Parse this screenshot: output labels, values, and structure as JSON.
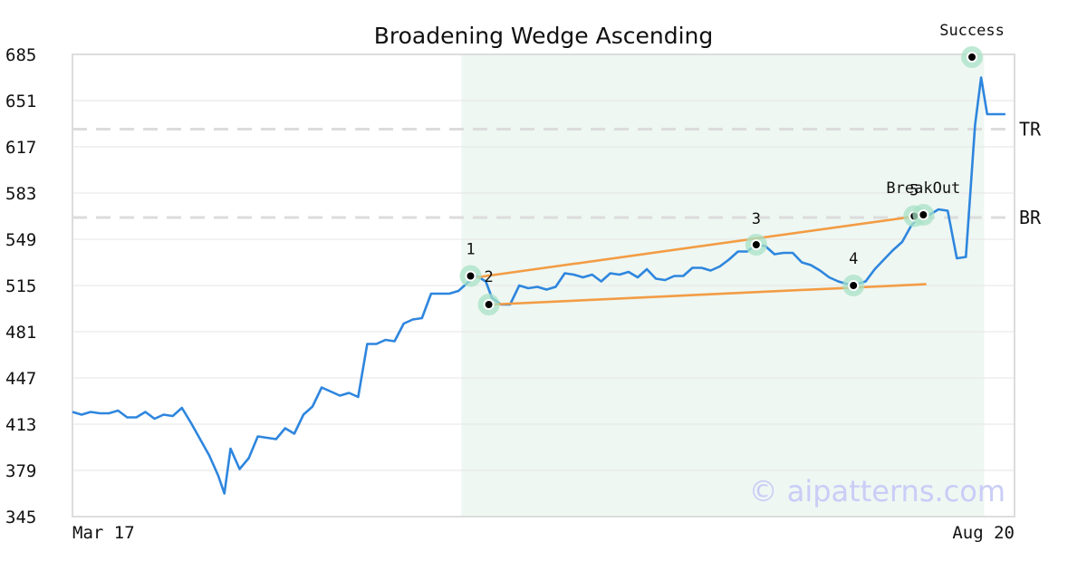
{
  "chart_data": {
    "type": "line",
    "title": "Broadening Wedge Ascending",
    "xlabel": "",
    "ylabel": "",
    "x_start_label": "Mar 17",
    "x_end_label": "Aug 20",
    "x_range": [
      0,
      155
    ],
    "ylim": [
      345,
      685
    ],
    "y_ticks": [
      345,
      379,
      413,
      447,
      481,
      515,
      549,
      583,
      617,
      651,
      685
    ],
    "grid": true,
    "pattern_window": [
      64,
      150
    ],
    "series": [
      {
        "color": "#2e86de",
        "points": [
          [
            0,
            422
          ],
          [
            1.5,
            420
          ],
          [
            3,
            422
          ],
          [
            4.5,
            421
          ],
          [
            6,
            421
          ],
          [
            7.5,
            423
          ],
          [
            9,
            418
          ],
          [
            10.5,
            418
          ],
          [
            12,
            422
          ],
          [
            13.5,
            417
          ],
          [
            15,
            420
          ],
          [
            16.5,
            419
          ],
          [
            18,
            425
          ],
          [
            19.5,
            414
          ],
          [
            21,
            402
          ],
          [
            22.5,
            390
          ],
          [
            24,
            375
          ],
          [
            25,
            362
          ],
          [
            26,
            395
          ],
          [
            27.5,
            380
          ],
          [
            29,
            388
          ],
          [
            30.5,
            404
          ],
          [
            32,
            403
          ],
          [
            33.5,
            402
          ],
          [
            35,
            410
          ],
          [
            36.5,
            406
          ],
          [
            38,
            420
          ],
          [
            39.5,
            426
          ],
          [
            41,
            440
          ],
          [
            42.5,
            437
          ],
          [
            44,
            434
          ],
          [
            45.5,
            436
          ],
          [
            47,
            433
          ],
          [
            48.5,
            472
          ],
          [
            50,
            472
          ],
          [
            51.5,
            475
          ],
          [
            53,
            474
          ],
          [
            54.5,
            487
          ],
          [
            56,
            490
          ],
          [
            57.5,
            491
          ],
          [
            59,
            509
          ],
          [
            60.5,
            509
          ],
          [
            62,
            509
          ],
          [
            63.5,
            511
          ],
          [
            65,
            517
          ],
          [
            66.5,
            522
          ],
          [
            68,
            518
          ],
          [
            69,
            506
          ],
          [
            70.5,
            501
          ],
          [
            72,
            501
          ],
          [
            73.5,
            515
          ],
          [
            75,
            513
          ],
          [
            76.5,
            514
          ],
          [
            78,
            512
          ],
          [
            79.5,
            514
          ],
          [
            81,
            524
          ],
          [
            82.5,
            523
          ],
          [
            84,
            521
          ],
          [
            85.5,
            523
          ],
          [
            87,
            518
          ],
          [
            88.5,
            524
          ],
          [
            90,
            523
          ],
          [
            91.5,
            525
          ],
          [
            93,
            521
          ],
          [
            94.5,
            527
          ],
          [
            96,
            520
          ],
          [
            97.5,
            519
          ],
          [
            99,
            522
          ],
          [
            100.5,
            522
          ],
          [
            102,
            528
          ],
          [
            103.5,
            528
          ],
          [
            105,
            526
          ],
          [
            106.5,
            529
          ],
          [
            108,
            534
          ],
          [
            109.5,
            540
          ],
          [
            111,
            540
          ],
          [
            112.5,
            545
          ],
          [
            114,
            544
          ],
          [
            115.5,
            538
          ],
          [
            117,
            539
          ],
          [
            118.5,
            539
          ],
          [
            120,
            532
          ],
          [
            121.5,
            530
          ],
          [
            123,
            526
          ],
          [
            124.5,
            521
          ],
          [
            126,
            518
          ],
          [
            127.5,
            516
          ],
          [
            129,
            516
          ],
          [
            130.5,
            518
          ],
          [
            132,
            527
          ],
          [
            133.5,
            534
          ],
          [
            135,
            541
          ],
          [
            136.5,
            547
          ],
          [
            138,
            559
          ],
          [
            139.5,
            566
          ],
          [
            141,
            567
          ],
          [
            142.5,
            571
          ],
          [
            144,
            570
          ],
          [
            145.5,
            535
          ],
          [
            147,
            536
          ],
          [
            148.5,
            633
          ],
          [
            149.5,
            668
          ],
          [
            150.5,
            641
          ],
          [
            152,
            641
          ],
          [
            153.5,
            641
          ]
        ]
      }
    ],
    "trendlines": [
      {
        "color": "#f39c44",
        "from": [
          66.5,
          521
        ],
        "to": [
          140.5,
          567
        ]
      },
      {
        "color": "#f39c44",
        "from": [
          69,
          501
        ],
        "to": [
          140.5,
          516
        ]
      }
    ],
    "levels": [
      {
        "label": "TR",
        "value": 630
      },
      {
        "label": "BR",
        "value": 565
      }
    ],
    "points": [
      {
        "label": "1",
        "x": 65.5,
        "y": 522
      },
      {
        "label": "2",
        "x": 68.5,
        "y": 501
      },
      {
        "label": "3",
        "x": 112.5,
        "y": 545
      },
      {
        "label": "4",
        "x": 128.5,
        "y": 515
      },
      {
        "label": "5",
        "x": 138.5,
        "y": 566
      },
      {
        "label": "BreakOut",
        "x": 140,
        "y": 567
      },
      {
        "label": "Success",
        "x": 148,
        "y": 683
      }
    ],
    "watermark": "© aipatterns.com"
  }
}
